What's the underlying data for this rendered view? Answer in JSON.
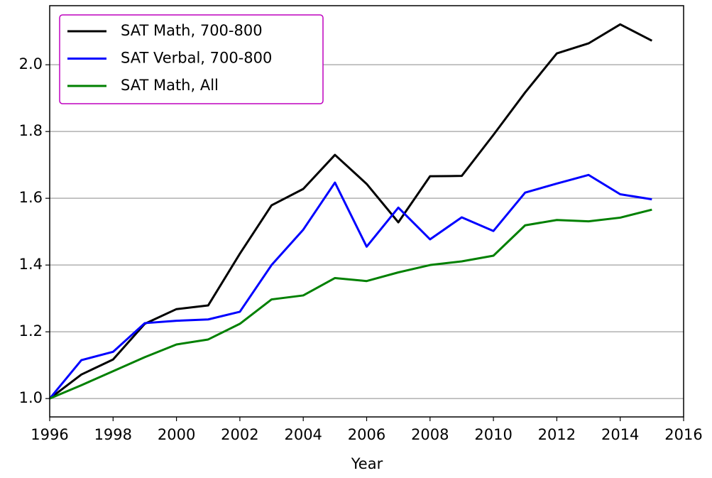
{
  "chart_data": {
    "type": "line",
    "x_label": "Year",
    "x": [
      1996,
      1997,
      1998,
      1999,
      2000,
      2001,
      2002,
      2003,
      2004,
      2005,
      2006,
      2007,
      2008,
      2009,
      2010,
      2011,
      2012,
      2013,
      2014,
      2015
    ],
    "series": [
      {
        "name": "SAT Math, 700-800",
        "color": "#000000",
        "values": [
          1.0,
          1.072,
          1.117,
          1.224,
          1.268,
          1.279,
          1.434,
          1.579,
          1.628,
          1.73,
          1.643,
          1.528,
          1.666,
          1.667,
          1.79,
          1.917,
          2.034,
          2.064,
          2.121,
          2.072
        ]
      },
      {
        "name": "SAT Verbal, 700-800",
        "color": "#0000ff",
        "values": [
          1.0,
          1.115,
          1.14,
          1.226,
          1.233,
          1.237,
          1.26,
          1.4,
          1.506,
          1.647,
          1.455,
          1.572,
          1.477,
          1.543,
          1.502,
          1.617,
          1.644,
          1.67,
          1.612,
          1.597
        ]
      },
      {
        "name": "SAT Math, All",
        "color": "#008000",
        "values": [
          1.0,
          1.04,
          1.082,
          1.124,
          1.162,
          1.177,
          1.224,
          1.297,
          1.309,
          1.361,
          1.352,
          1.378,
          1.4,
          1.411,
          1.428,
          1.519,
          1.535,
          1.531,
          1.542,
          1.566
        ]
      }
    ],
    "xlim": [
      1996,
      2016
    ],
    "xticks": [
      1996,
      1998,
      2000,
      2002,
      2004,
      2006,
      2008,
      2010,
      2012,
      2014,
      2016
    ],
    "ylim": [
      0.945,
      2.177
    ],
    "yticks": [
      {
        "value": 1,
        "label": "1.0"
      },
      1.2,
      1.4,
      1.6,
      1.8,
      {
        "value": 2,
        "label": "2.0"
      }
    ],
    "grid": "y",
    "legend": "upper left",
    "legend_edgecolor": "#bf00bf"
  }
}
